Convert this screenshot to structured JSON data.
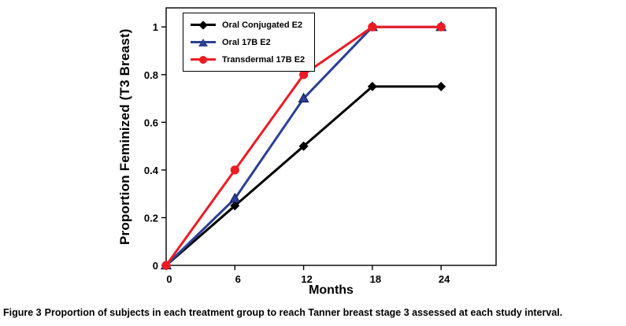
{
  "chart_data": {
    "type": "line",
    "x": [
      0,
      6,
      12,
      18,
      24
    ],
    "series": [
      {
        "name": "Oral Conjugated E2",
        "color": "#000000",
        "marker": "diamond",
        "values": [
          0,
          0.25,
          0.5,
          0.75,
          0.75
        ]
      },
      {
        "name": "Oral 17B E2",
        "color": "#2B3F96",
        "marker": "triangle",
        "values": [
          0,
          0.28,
          0.7,
          1,
          1
        ]
      },
      {
        "name": "Transdermal 17B E2",
        "color": "#EC1C24",
        "marker": "circle",
        "values": [
          0,
          0.4,
          0.8,
          1,
          1
        ]
      }
    ],
    "title": "",
    "xlabel": "Months",
    "ylabel": "Proportion Feminized (T3 Breast)",
    "xlim": [
      0,
      24
    ],
    "ylim": [
      0,
      1
    ],
    "xticks": [
      0,
      6,
      12,
      18,
      24
    ],
    "yticks": [
      0,
      0.2,
      0.4,
      0.6,
      0.8,
      1
    ],
    "grid": false,
    "legend_position": "top-left"
  },
  "caption": {
    "label": "Figure 3",
    "text": "Proportion of subjects in each treatment group to reach Tanner breast stage 3 assessed at each study interval."
  }
}
